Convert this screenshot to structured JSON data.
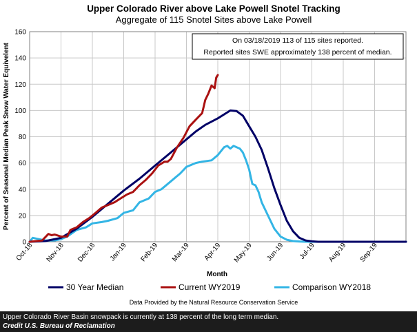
{
  "colors": {
    "median": "#000066",
    "current": "#aa1111",
    "comparison": "#33b5e5",
    "grid": "#c8c8c8",
    "caption_bg": "#1c1c1c"
  },
  "chart_data": {
    "type": "line",
    "title": "Upper Colorado River above Lake Powell Snotel Tracking",
    "subtitle": "Aggregate of 115 Snotel Sites above Lake Powell",
    "xlabel": "Month",
    "ylabel": "Percent of Seasonal Median Peak Snow Water Equivelent",
    "xlim": [
      0,
      12
    ],
    "ylim": [
      0,
      160
    ],
    "yticks": [
      0,
      20,
      40,
      60,
      80,
      100,
      120,
      140,
      160
    ],
    "xtick_labels": [
      "Oct-18",
      "Nov-18",
      "Dec-18",
      "Jan-19",
      "Feb-19",
      "Mar-19",
      "Apr-19",
      "May-19",
      "Jun-19",
      "Jul-19",
      "Aug-19",
      "Sep-19"
    ],
    "grid": true,
    "legend_position": "bottom",
    "annotation": {
      "line1": "On 03/18/2019 113 of 115 sites reported.",
      "line2": "Reported sites SWE approximately 138 percent of median."
    },
    "source": "Data Provided by the Natural Resource Conservation Service",
    "series": [
      {
        "name": "30 Year Median",
        "key": "median",
        "x": [
          0,
          0.5,
          1.0,
          1.5,
          2.0,
          2.5,
          3.0,
          3.5,
          4.0,
          4.5,
          5.0,
          5.3,
          5.6,
          5.8,
          6.0,
          6.2,
          6.4,
          6.6,
          6.8,
          7.0,
          7.2,
          7.4,
          7.6,
          7.8,
          8.0,
          8.2,
          8.4,
          8.6,
          8.8,
          9.0,
          9.2,
          9.5,
          10,
          11,
          12
        ],
        "y": [
          0,
          0.5,
          3,
          10,
          19,
          29,
          39,
          48,
          58,
          68,
          78,
          84,
          89,
          91.5,
          94,
          97,
          100,
          99.5,
          96,
          88,
          80,
          70,
          56,
          41,
          28,
          16,
          8,
          3,
          1,
          0.3,
          0,
          0,
          0,
          0,
          0
        ]
      },
      {
        "name": "Current WY2019",
        "key": "current",
        "x": [
          0,
          0.2,
          0.4,
          0.6,
          0.7,
          0.8,
          1.0,
          1.2,
          1.3,
          1.5,
          1.7,
          1.9,
          2.1,
          2.3,
          2.5,
          2.7,
          2.9,
          3.1,
          3.3,
          3.5,
          3.7,
          3.9,
          4.1,
          4.3,
          4.4,
          4.5,
          4.7,
          4.9,
          5.1,
          5.3,
          5.5,
          5.6,
          5.7,
          5.8,
          5.9,
          5.95,
          6.0
        ],
        "y": [
          0,
          0.5,
          1,
          6,
          5,
          5.5,
          4,
          4,
          9,
          11,
          15,
          18,
          22,
          26,
          28,
          30,
          33,
          36,
          38,
          43,
          47,
          52,
          58,
          61,
          61,
          63,
          72,
          79,
          88,
          93,
          98,
          108,
          113,
          119,
          117,
          125,
          127
        ]
      },
      {
        "name": "Comparison WY2018",
        "key": "comparison",
        "x": [
          0,
          0.1,
          0.3,
          0.5,
          0.8,
          1.0,
          1.2,
          1.5,
          1.8,
          2.0,
          2.3,
          2.5,
          2.8,
          3.0,
          3.3,
          3.5,
          3.8,
          4.0,
          4.2,
          4.5,
          4.8,
          5.0,
          5.3,
          5.5,
          5.8,
          6.0,
          6.2,
          6.3,
          6.4,
          6.5,
          6.6,
          6.7,
          6.8,
          6.9,
          7.0,
          7.1,
          7.2,
          7.3,
          7.4,
          7.6,
          7.8,
          8.0,
          8.2,
          8.4,
          8.6,
          8.8,
          9.0,
          10,
          11,
          12
        ],
        "y": [
          0,
          3,
          2,
          1,
          1,
          2,
          4,
          9,
          11,
          14,
          15,
          16,
          18,
          22,
          24,
          30,
          33,
          38,
          40,
          46,
          52,
          57,
          60,
          61,
          62,
          66,
          72,
          73,
          71,
          73,
          72,
          71,
          68,
          62,
          55,
          44,
          43,
          38,
          30,
          20,
          10,
          4,
          1.5,
          0.5,
          0.2,
          0,
          0,
          0,
          0,
          0
        ]
      }
    ]
  },
  "caption": {
    "line1": "Upper Colorado River Basin snowpack is currently at 138 percent of the long term median.",
    "line2": "Credit U.S. Bureau of Reclamation"
  }
}
